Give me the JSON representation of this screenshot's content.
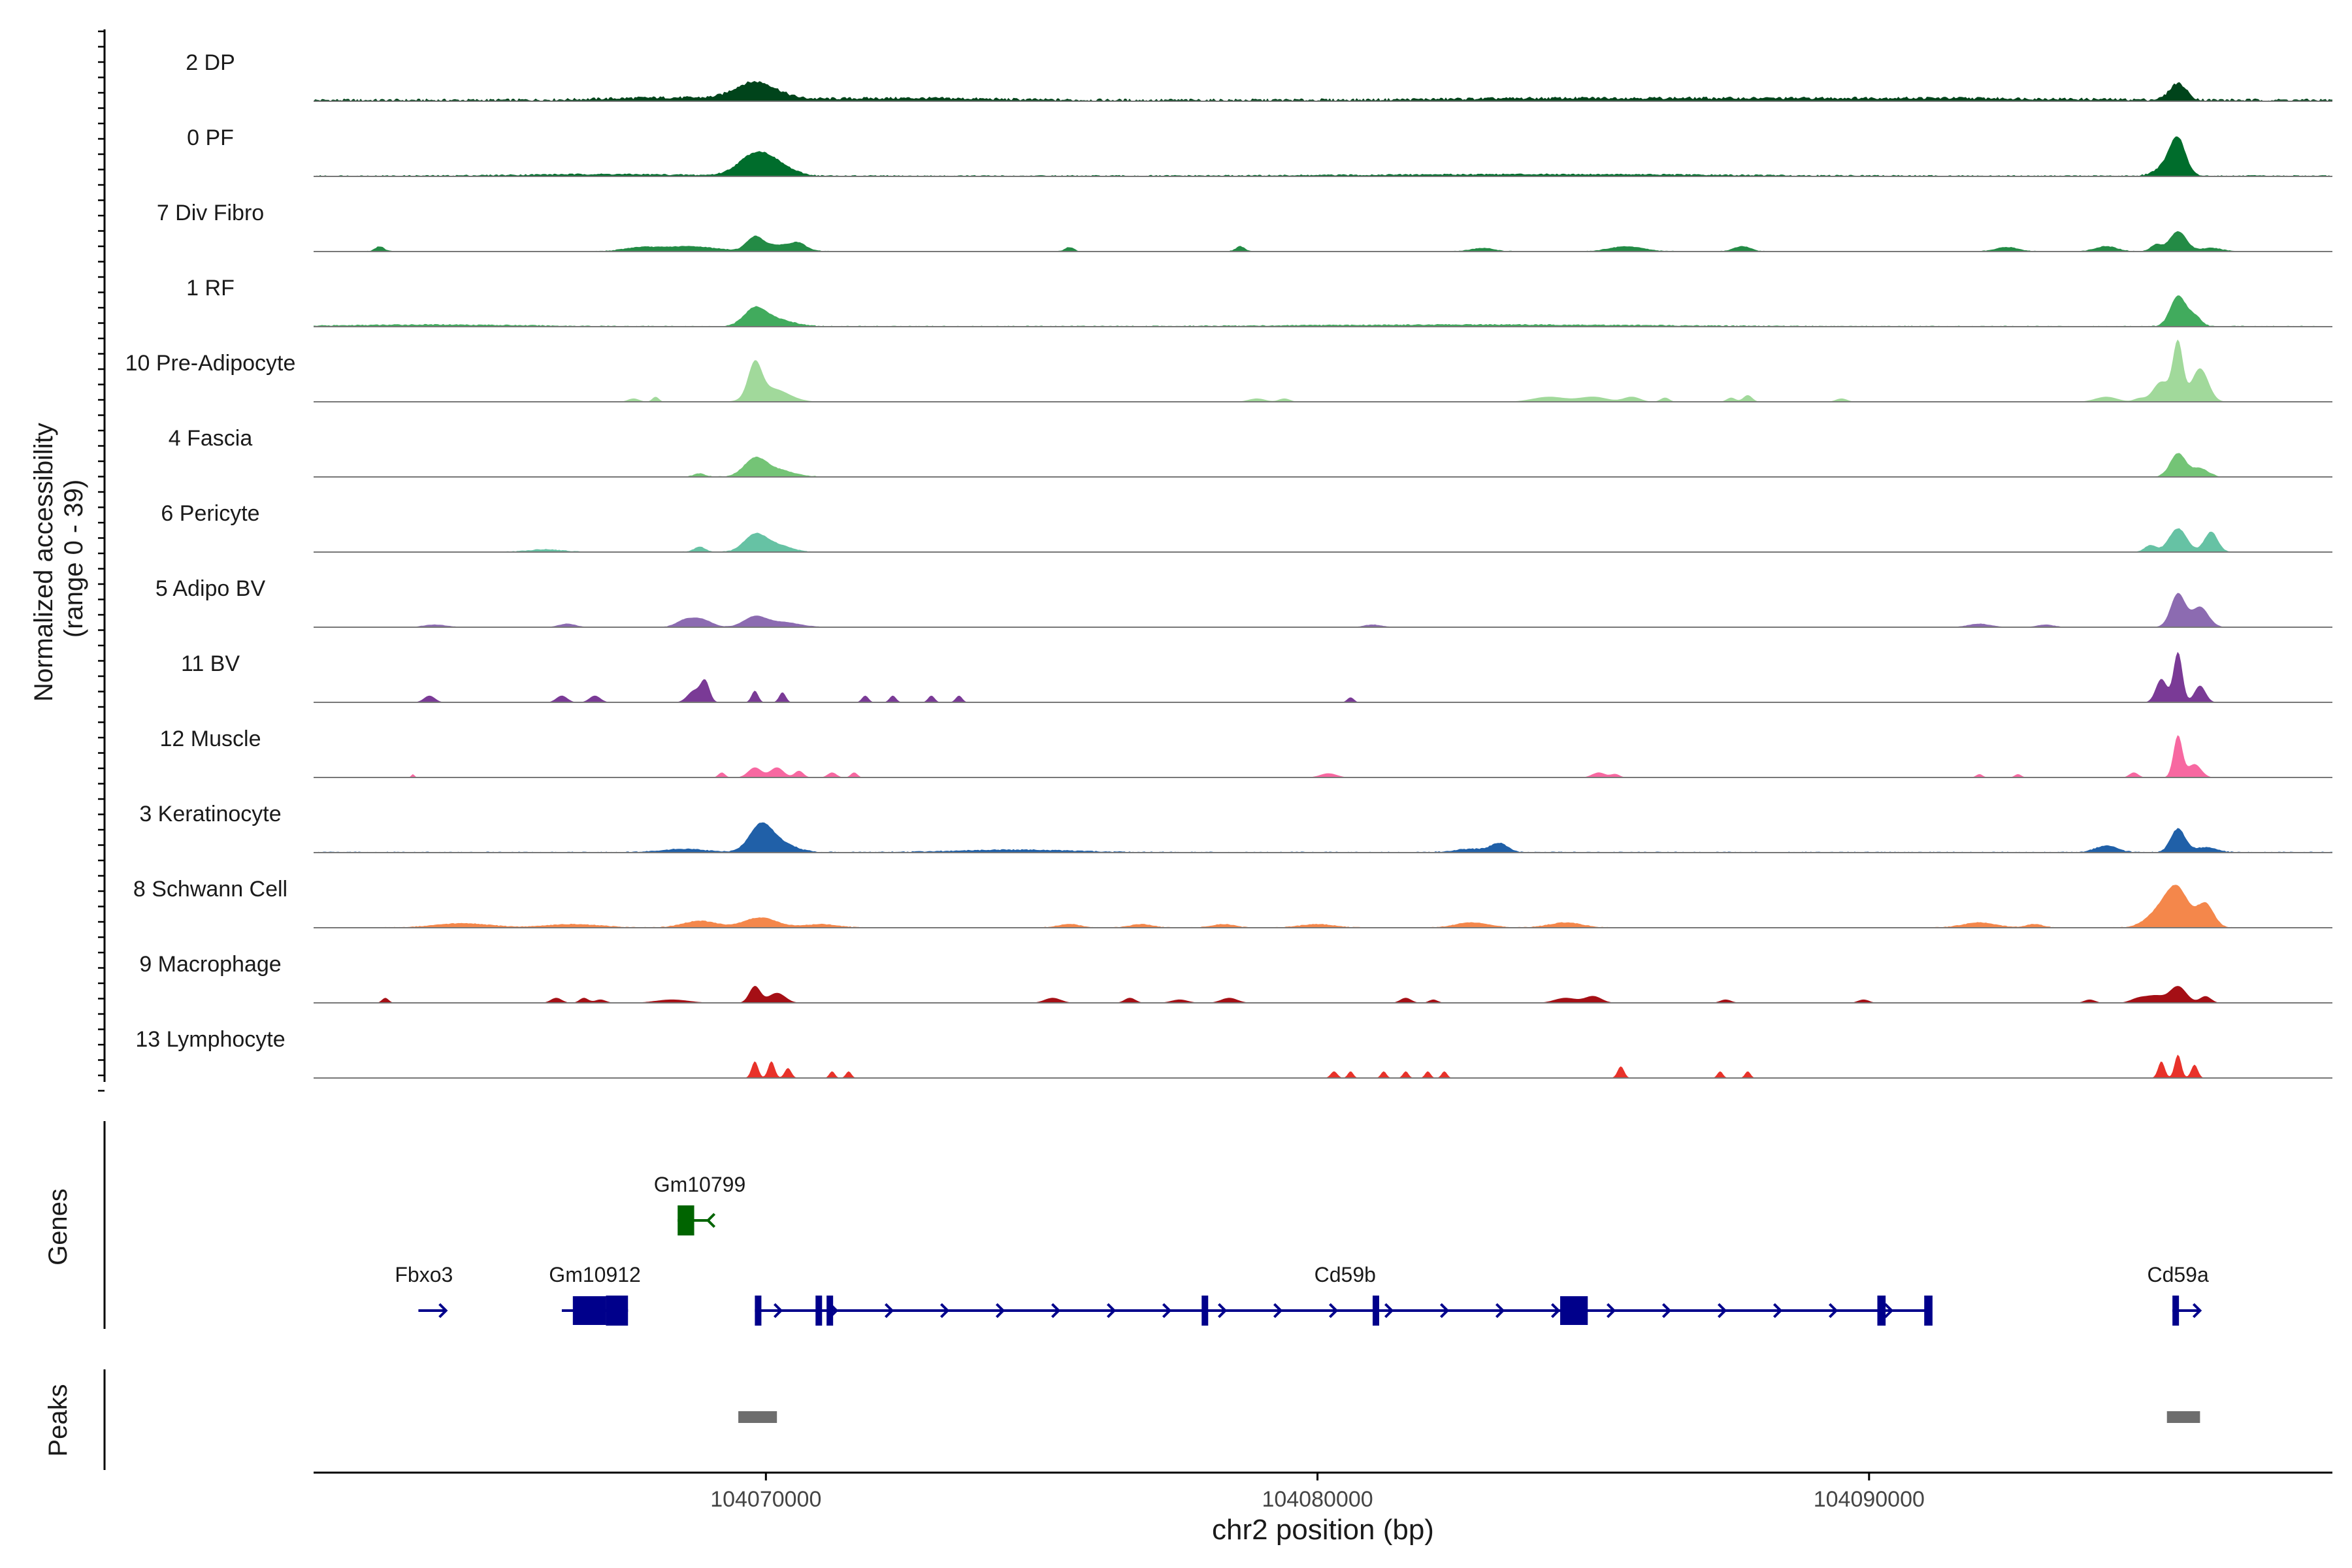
{
  "chart_data": {
    "type": "area",
    "ylabel_line1": "Normalized accessibility",
    "ylabel_line2": "(range 0 - 39)",
    "ylim": [
      0,
      39
    ],
    "xlabel": "chr2 position (bp)",
    "xlim": [
      104061800,
      104098400
    ],
    "xticks": [
      104070000,
      104080000,
      104090000
    ],
    "xtick_labels": [
      "104070000",
      "104080000",
      "104090000"
    ],
    "genes_label": "Genes",
    "peaks_label": "Peaks",
    "tracks": [
      {
        "name": "2 DP",
        "color": "#00441b",
        "baseline": 4,
        "peaks": [
          [
            104069900,
            8,
            350
          ],
          [
            104069600,
            3,
            300
          ],
          [
            104095600,
            10,
            150
          ],
          [
            104068300,
            1.5,
            1200
          ],
          [
            104072500,
            1.2,
            1500
          ],
          [
            104085000,
            1.2,
            2500
          ],
          [
            104091000,
            1.2,
            2500
          ]
        ]
      },
      {
        "name": "0 PF",
        "color": "#006d2c",
        "baseline": 2,
        "peaks": [
          [
            104069800,
            12,
            300
          ],
          [
            104070200,
            5,
            300
          ],
          [
            104095600,
            20,
            140
          ],
          [
            104095400,
            6,
            200
          ],
          [
            104067000,
            1,
            1500
          ],
          [
            104084000,
            1,
            3000
          ]
        ]
      },
      {
        "name": "7 Div Fibro",
        "color": "#238b45",
        "baseline": 1,
        "peaks": [
          [
            104069800,
            8,
            150
          ],
          [
            104070300,
            4,
            300
          ],
          [
            104070600,
            3,
            120
          ],
          [
            104063000,
            3,
            80
          ],
          [
            104068600,
            3,
            500
          ],
          [
            104067700,
            2,
            300
          ],
          [
            104075500,
            2.5,
            80
          ],
          [
            104078600,
            3,
            80
          ],
          [
            104083000,
            2,
            200
          ],
          [
            104085600,
            3,
            300
          ],
          [
            104087700,
            3,
            150
          ],
          [
            104092500,
            2.5,
            200
          ],
          [
            104094300,
            3,
            200
          ],
          [
            104095600,
            12,
            150
          ],
          [
            104095200,
            4,
            100
          ],
          [
            104096200,
            2,
            200
          ]
        ]
      },
      {
        "name": "1 RF",
        "color": "#41ab5d",
        "baseline": 1.5,
        "peaks": [
          [
            104069800,
            10,
            200
          ],
          [
            104070200,
            4,
            300
          ],
          [
            104095600,
            18,
            140
          ],
          [
            104095900,
            6,
            120
          ],
          [
            104064000,
            1,
            1500
          ],
          [
            104083000,
            1,
            3000
          ]
        ]
      },
      {
        "name": "10 Pre-Adipocyte",
        "color": "#a1d99b",
        "baseline": 0,
        "peaks": [
          [
            104069800,
            20,
            120
          ],
          [
            104070100,
            8,
            300
          ],
          [
            104067600,
            2,
            100
          ],
          [
            104068000,
            3,
            60
          ],
          [
            104078900,
            2,
            150
          ],
          [
            104079400,
            2,
            100
          ],
          [
            104084200,
            3,
            300
          ],
          [
            104085000,
            3,
            250
          ],
          [
            104085700,
            3,
            150
          ],
          [
            104086300,
            2.5,
            80
          ],
          [
            104087500,
            2.5,
            80
          ],
          [
            104087800,
            4,
            80
          ],
          [
            104089500,
            2,
            100
          ],
          [
            104094300,
            3,
            200
          ],
          [
            104094900,
            2,
            100
          ],
          [
            104095600,
            35,
            90
          ],
          [
            104095300,
            12,
            150
          ],
          [
            104096000,
            20,
            150
          ]
        ]
      },
      {
        "name": "4 Fascia",
        "color": "#74c476",
        "baseline": 1,
        "peaks": [
          [
            104069800,
            10,
            200
          ],
          [
            104070200,
            4,
            300
          ],
          [
            104068800,
            2,
            100
          ],
          [
            104095600,
            14,
            140
          ],
          [
            104096000,
            5,
            150
          ]
        ]
      },
      {
        "name": "6 Pericyte",
        "color": "#66c2a4",
        "baseline": 1,
        "peaks": [
          [
            104069800,
            10,
            200
          ],
          [
            104070200,
            4,
            250
          ],
          [
            104068800,
            3,
            100
          ],
          [
            104066000,
            1.5,
            300
          ],
          [
            104095600,
            14,
            160
          ],
          [
            104096200,
            12,
            120
          ],
          [
            104095100,
            4,
            100
          ]
        ]
      },
      {
        "name": "5 Adipo BV",
        "color": "#8c6bb1",
        "baseline": 0.5,
        "peaks": [
          [
            104069800,
            6,
            200
          ],
          [
            104070300,
            3,
            300
          ],
          [
            104068800,
            5,
            200
          ],
          [
            104068500,
            3,
            150
          ],
          [
            104066400,
            2,
            150
          ],
          [
            104064000,
            1.5,
            200
          ],
          [
            104081000,
            1.5,
            150
          ],
          [
            104092000,
            2,
            200
          ],
          [
            104093200,
            1.5,
            150
          ],
          [
            104095600,
            20,
            130
          ],
          [
            104096000,
            12,
            150
          ]
        ]
      },
      {
        "name": "11 BV",
        "color": "#7a3a96",
        "baseline": 0,
        "peaks": [
          [
            104068900,
            12,
            80
          ],
          [
            104068700,
            7,
            120
          ],
          [
            104069800,
            7,
            60
          ],
          [
            104070300,
            6,
            60
          ],
          [
            104063900,
            4,
            100
          ],
          [
            104066300,
            4,
            100
          ],
          [
            104066900,
            4,
            100
          ],
          [
            104071800,
            4,
            60
          ],
          [
            104072300,
            4,
            60
          ],
          [
            104073000,
            4,
            60
          ],
          [
            104073500,
            4,
            60
          ],
          [
            104080600,
            3,
            60
          ],
          [
            104095600,
            30,
            80
          ],
          [
            104095300,
            14,
            100
          ],
          [
            104096000,
            10,
            100
          ]
        ]
      },
      {
        "name": "12 Muscle",
        "color": "#f768a1",
        "baseline": 0,
        "peaks": [
          [
            104069800,
            6,
            120
          ],
          [
            104070200,
            6,
            120
          ],
          [
            104070600,
            4,
            80
          ],
          [
            104071200,
            3,
            80
          ],
          [
            104071600,
            3,
            60
          ],
          [
            104069200,
            3,
            60
          ],
          [
            104063600,
            2,
            30
          ],
          [
            104080200,
            2.5,
            150
          ],
          [
            104085100,
            3,
            120
          ],
          [
            104085400,
            2,
            80
          ],
          [
            104092000,
            2,
            60
          ],
          [
            104092700,
            2,
            60
          ],
          [
            104094800,
            3,
            80
          ],
          [
            104095600,
            25,
            80
          ],
          [
            104095900,
            8,
            120
          ]
        ]
      },
      {
        "name": "3 Keratinocyte",
        "color": "#2060a8",
        "baseline": 1.5,
        "peaks": [
          [
            104069900,
            14,
            200
          ],
          [
            104070200,
            6,
            300
          ],
          [
            104068500,
            2,
            400
          ],
          [
            104074500,
            1.5,
            1000
          ],
          [
            104083300,
            5,
            150
          ],
          [
            104082800,
            2,
            300
          ],
          [
            104094300,
            4,
            200
          ],
          [
            104095600,
            14,
            130
          ],
          [
            104096100,
            3,
            200
          ]
        ]
      },
      {
        "name": "8 Schwann Cell",
        "color": "#f4874b",
        "baseline": 1,
        "peaks": [
          [
            104069900,
            6,
            300
          ],
          [
            104068800,
            4,
            300
          ],
          [
            104064500,
            2.5,
            500
          ],
          [
            104066500,
            2,
            500
          ],
          [
            104071000,
            2,
            300
          ],
          [
            104075500,
            2,
            200
          ],
          [
            104076800,
            2,
            200
          ],
          [
            104078300,
            2,
            200
          ],
          [
            104080000,
            2,
            300
          ],
          [
            104082800,
            3,
            300
          ],
          [
            104084500,
            3,
            300
          ],
          [
            104092000,
            3,
            300
          ],
          [
            104093000,
            2,
            150
          ],
          [
            104095600,
            20,
            200
          ],
          [
            104095300,
            10,
            250
          ],
          [
            104096100,
            14,
            150
          ]
        ]
      },
      {
        "name": "9 Macrophage",
        "color": "#a50f15",
        "baseline": 0,
        "peaks": [
          [
            104069800,
            10,
            100
          ],
          [
            104070200,
            6,
            150
          ],
          [
            104063100,
            3,
            60
          ],
          [
            104066200,
            3,
            100
          ],
          [
            104066700,
            3,
            80
          ],
          [
            104067000,
            2,
            100
          ],
          [
            104068300,
            2,
            300
          ],
          [
            104075200,
            3,
            150
          ],
          [
            104076600,
            3,
            100
          ],
          [
            104077500,
            2,
            150
          ],
          [
            104078400,
            3,
            150
          ],
          [
            104081600,
            3,
            100
          ],
          [
            104082100,
            2,
            80
          ],
          [
            104084500,
            3,
            200
          ],
          [
            104085000,
            4,
            150
          ],
          [
            104087400,
            2,
            100
          ],
          [
            104089900,
            2,
            100
          ],
          [
            104094000,
            2,
            100
          ],
          [
            104094900,
            3,
            150
          ],
          [
            104095600,
            10,
            150
          ],
          [
            104095200,
            4,
            150
          ],
          [
            104096100,
            4,
            100
          ]
        ]
      },
      {
        "name": "13 Lymphocyte",
        "color": "#e8322a",
        "baseline": 0,
        "peaks": [
          [
            104069800,
            10,
            60
          ],
          [
            104070100,
            10,
            60
          ],
          [
            104070400,
            6,
            60
          ],
          [
            104071200,
            4,
            50
          ],
          [
            104071500,
            4,
            50
          ],
          [
            104080300,
            4,
            60
          ],
          [
            104080600,
            4,
            50
          ],
          [
            104081200,
            4,
            50
          ],
          [
            104081600,
            4,
            50
          ],
          [
            104082000,
            4,
            50
          ],
          [
            104082300,
            4,
            50
          ],
          [
            104085500,
            7,
            60
          ],
          [
            104087300,
            4,
            50
          ],
          [
            104087800,
            4,
            50
          ],
          [
            104095300,
            10,
            60
          ],
          [
            104095600,
            14,
            60
          ],
          [
            104095900,
            8,
            60
          ]
        ]
      }
    ],
    "genes": [
      {
        "name": "Fbxo3",
        "label_x": 104063800,
        "color": "#00008b",
        "row": 2,
        "start": 104063700,
        "end": 104064200,
        "strand": "+",
        "exons": []
      },
      {
        "name": "Gm10912",
        "label_x": 104066900,
        "color": "#00008b",
        "row": 2,
        "start": 104066300,
        "end": 104067500,
        "strand": "+",
        "exons": [
          [
            104066500,
            104067100
          ],
          [
            104067100,
            104067500
          ]
        ]
      },
      {
        "name": "Gm10799",
        "label_x": 104068800,
        "color": "#006400",
        "row": 1,
        "start": 104068400,
        "end": 104068950,
        "strand": "-",
        "exons": [
          [
            104068400,
            104068700
          ]
        ]
      },
      {
        "name": "Cd59b",
        "label_x": 104080500,
        "color": "#00008b",
        "row": 2,
        "start": 104069800,
        "end": 104091100,
        "strand": "+",
        "exons": [
          [
            104069800,
            104069900
          ],
          [
            104070900,
            104071000
          ],
          [
            104071100,
            104071200
          ],
          [
            104077900,
            104078000
          ],
          [
            104081000,
            104081100
          ],
          [
            104084400,
            104084900
          ],
          [
            104090150,
            104090300
          ],
          [
            104091000,
            104091150
          ]
        ]
      },
      {
        "name": "Cd59a",
        "label_x": 104095600,
        "color": "#00008b",
        "row": 2,
        "start": 104095500,
        "end": 104096000,
        "strand": "+",
        "exons": [
          [
            104095500,
            104095600
          ]
        ]
      }
    ],
    "peaks": [
      [
        104069500,
        104070200
      ],
      [
        104095400,
        104096000
      ]
    ]
  }
}
